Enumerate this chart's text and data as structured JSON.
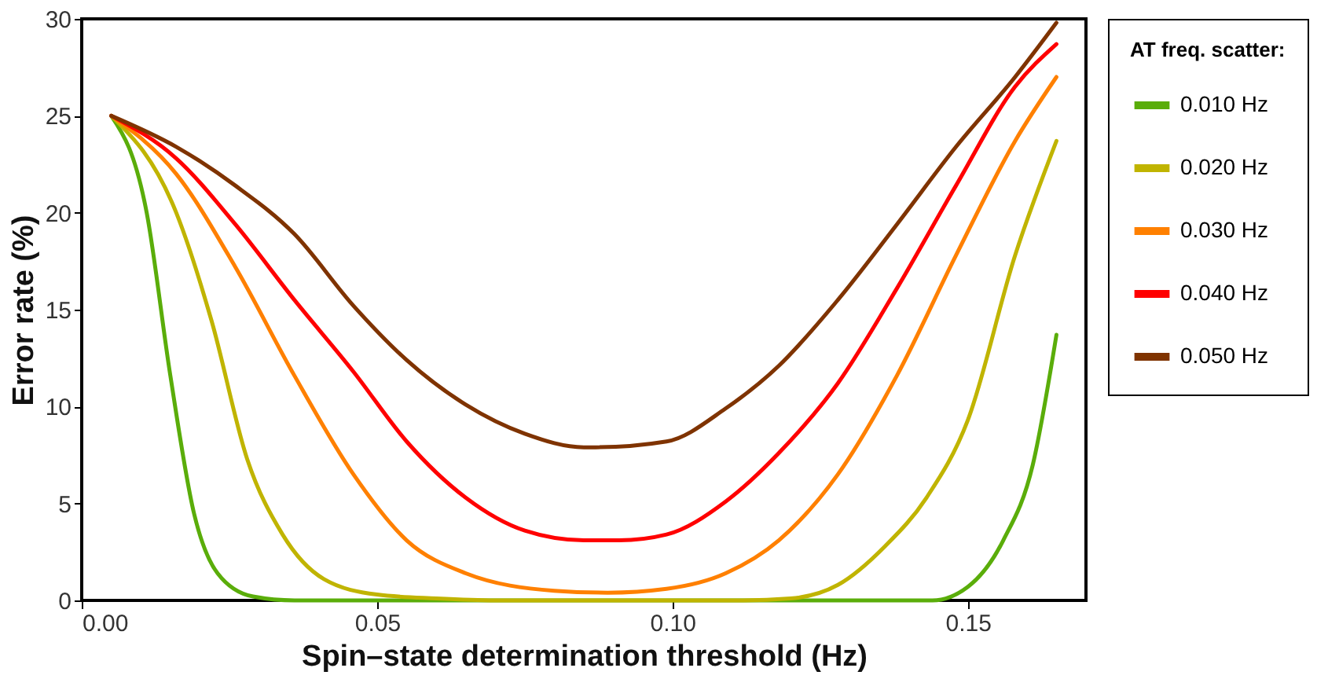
{
  "chart_data": {
    "type": "line",
    "xlabel": "Spin–state determination threshold (Hz)",
    "ylabel": "Error rate (%)",
    "legend_title": "AT freq. scatter:",
    "legend": "right",
    "grid": false,
    "line_style": "solid",
    "marker": "none",
    "xlim": [
      0,
      0.17
    ],
    "ylim": [
      0,
      30
    ],
    "xticks": [
      {
        "value": 0,
        "label": "0.00"
      },
      {
        "value": 0.05,
        "label": "0.05"
      },
      {
        "value": 0.1,
        "label": "0.10"
      },
      {
        "value": 0.15,
        "label": "0.15"
      }
    ],
    "yticks": [
      0,
      5,
      10,
      15,
      20,
      25,
      30
    ],
    "series": [
      {
        "name": "0.010 Hz",
        "color": "#5aad0a",
        "x": [
          0.005,
          0.011,
          0.015,
          0.019,
          0.023,
          0.029,
          0.036,
          0.06,
          0.1,
          0.144,
          0.15,
          0.156,
          0.161,
          0.165
        ],
        "values": [
          25,
          20,
          11.6,
          4.5,
          1.4,
          0.2,
          0,
          0,
          0,
          0,
          0.7,
          3.1,
          7,
          13.7
        ]
      },
      {
        "name": "0.020 Hz",
        "color": "#c0b400",
        "x": [
          0.005,
          0.016,
          0.022,
          0.028,
          0.034,
          0.041,
          0.05,
          0.06,
          0.07,
          0.09,
          0.112,
          0.12,
          0.128,
          0.136,
          0.143,
          0.15,
          0.158,
          0.165
        ],
        "values": [
          25,
          20,
          14.4,
          7.3,
          3.4,
          1.1,
          0.3,
          0.1,
          0,
          0,
          0,
          0.1,
          0.8,
          2.8,
          5.3,
          9.3,
          17.8,
          23.7
        ]
      },
      {
        "name": "0.030 Hz",
        "color": "#ff8000",
        "x": [
          0.005,
          0.016,
          0.026,
          0.036,
          0.046,
          0.055,
          0.065,
          0.08,
          0.089,
          0.099,
          0.109,
          0.118,
          0.128,
          0.138,
          0.148,
          0.158,
          0.165
        ],
        "values": [
          25,
          22,
          17.2,
          11.6,
          6.5,
          3.1,
          1.4,
          0.5,
          0.4,
          0.6,
          1.4,
          3.1,
          6.5,
          11.6,
          17.8,
          23.7,
          27
        ]
      },
      {
        "name": "0.040 Hz",
        "color": "#ff0000",
        "x": [
          0.005,
          0.016,
          0.026,
          0.036,
          0.046,
          0.055,
          0.065,
          0.075,
          0.085,
          0.091,
          0.099,
          0.109,
          0.118,
          0.128,
          0.138,
          0.148,
          0.158,
          0.165
        ],
        "values": [
          25,
          22.8,
          19.4,
          15.5,
          11.8,
          8.2,
          5.3,
          3.6,
          3.1,
          3.1,
          3.4,
          5.1,
          7.6,
          11.2,
          16.1,
          21.4,
          26.5,
          28.7
        ]
      },
      {
        "name": "0.050 Hz",
        "color": "#7f3300",
        "x": [
          0.005,
          0.016,
          0.026,
          0.036,
          0.046,
          0.055,
          0.065,
          0.075,
          0.085,
          0.087,
          0.099,
          0.109,
          0.118,
          0.128,
          0.138,
          0.148,
          0.158,
          0.165
        ],
        "values": [
          25,
          23.4,
          21.4,
          18.9,
          15.2,
          12.4,
          10.1,
          8.6,
          7.9,
          7.9,
          8.2,
          9.9,
          12.1,
          15.5,
          19.4,
          23.4,
          27,
          29.8
        ]
      }
    ]
  }
}
